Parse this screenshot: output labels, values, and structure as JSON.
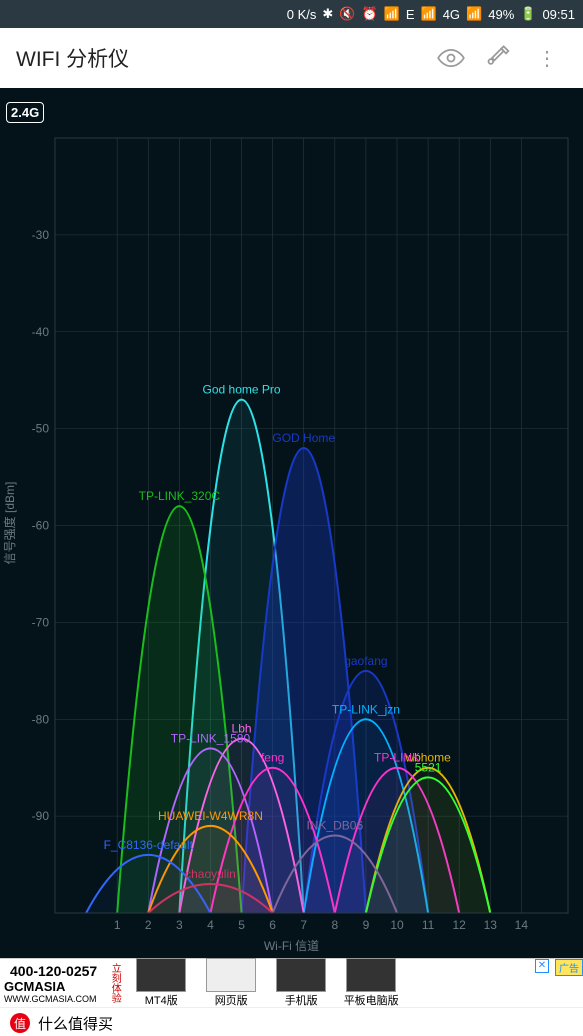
{
  "statusbar": {
    "speed": "0 K/s",
    "net": "E",
    "sig": "4G",
    "battery": "49%",
    "time": "09:51"
  },
  "appbar": {
    "title": "WIFI 分析仪"
  },
  "chart": {
    "band_badge": "2.4G",
    "y_label": "信号强度 [dBm]",
    "x_label": "Wi-Fi 信道",
    "y_min": -100,
    "y_max": -20,
    "y_ticks": [
      -30,
      -40,
      -50,
      -60,
      -70,
      -80,
      -90
    ],
    "x_ticks": [
      1,
      2,
      3,
      4,
      5,
      6,
      7,
      8,
      9,
      10,
      11,
      12,
      13,
      14
    ],
    "bg_color": "#04131a",
    "grid_color": "#2a3a42",
    "axis_text_color": "#6b7a82",
    "networks": [
      {
        "ssid": "God home Pro",
        "channel": 5,
        "dbm": -47,
        "color": "#2de2e6",
        "fill_opacity": 0.08
      },
      {
        "ssid": "GOD Home",
        "channel": 7,
        "dbm": -52,
        "color": "#1839c7",
        "fill_opacity": 0.35
      },
      {
        "ssid": "TP-LINK_320C",
        "channel": 3,
        "dbm": -58,
        "color": "#1abd1a",
        "fill_opacity": 0.15
      },
      {
        "ssid": "gaofang",
        "channel": 9,
        "dbm": -75,
        "color": "#1839c7",
        "fill_opacity": 0.2
      },
      {
        "ssid": "TP-LINK_jzn",
        "channel": 9,
        "dbm": -80,
        "color": "#00b3ff",
        "fill_opacity": 0.05
      },
      {
        "ssid": "Lbh",
        "channel": 5,
        "dbm": -82,
        "color": "#ff66e6",
        "fill_opacity": 0.05
      },
      {
        "ssid": "TP-LINK_1580",
        "channel": 4,
        "dbm": -83,
        "color": "#b266ff",
        "fill_opacity": 0.05
      },
      {
        "ssid": "wbhome",
        "channel": 11,
        "dbm": -85,
        "color": "#e6b800",
        "fill_opacity": 0.05
      },
      {
        "ssid": "feng",
        "channel": 6,
        "dbm": -85,
        "color": "#ff33cc",
        "fill_opacity": 0.05
      },
      {
        "ssid": "TP-LINK",
        "channel": 10,
        "dbm": -85,
        "color": "#ff33cc",
        "fill_opacity": 0.05
      },
      {
        "ssid": "5521",
        "channel": 11,
        "dbm": -86,
        "color": "#33ff33",
        "fill_opacity": 0.05
      },
      {
        "ssid": "HUAWEI-W4WR8N",
        "channel": 4,
        "dbm": -91,
        "color": "#ff9900",
        "fill_opacity": 0.05
      },
      {
        "ssid": "INK_DB06",
        "channel": 8,
        "dbm": -92,
        "color": "#806699",
        "fill_opacity": 0.05
      },
      {
        "ssid": "F_C8136-default",
        "channel": 2,
        "dbm": -94,
        "color": "#3366ff",
        "fill_opacity": 0.05
      },
      {
        "ssid": "chaoyulin",
        "channel": 4,
        "dbm": -97,
        "color": "#cc3366",
        "fill_opacity": 0.05
      }
    ]
  },
  "ad": {
    "phone": "400-120-0257",
    "brand": "GCMASIA",
    "url": "WWW.GCMASIA.COM",
    "cta": "立刻体验",
    "cols": [
      "MT4版",
      "网页版",
      "手机版",
      "平板电脑版"
    ],
    "tag": "广告"
  },
  "footer": {
    "text": "什么值得买",
    "logo": "值"
  }
}
